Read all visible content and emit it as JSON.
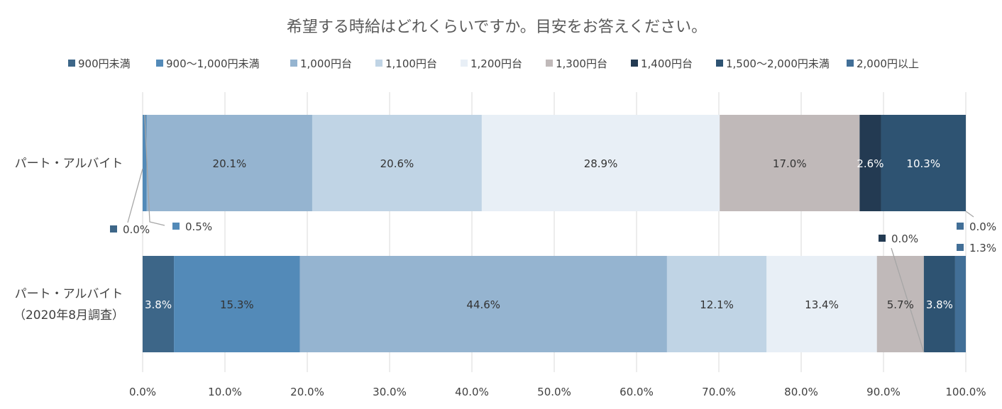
{
  "chart_data": {
    "type": "bar",
    "orientation": "horizontal",
    "stacked": true,
    "title": "希望する時給はどれくらいですか。目安をお答えください。",
    "categories": [
      "パート・アルバイト",
      "パート・アルバイト（2020年8月調査）"
    ],
    "category_lines": [
      [
        "パート・アルバイト"
      ],
      [
        "パート・アルバイト",
        "（2020年8月調査）"
      ]
    ],
    "xlim": [
      0,
      100
    ],
    "x_ticks": [
      0,
      10,
      20,
      30,
      40,
      50,
      60,
      70,
      80,
      90,
      100
    ],
    "x_tick_labels": [
      "0.0%",
      "10.0%",
      "20.0%",
      "30.0%",
      "40.0%",
      "50.0%",
      "60.0%",
      "70.0%",
      "80.0%",
      "90.0%",
      "100.0%"
    ],
    "grid": true,
    "legend_position": "top",
    "series": [
      {
        "name": "900円未満",
        "color": "#3d6688",
        "values": [
          0.0,
          3.8
        ],
        "labels": [
          "0.0%",
          "3.8%"
        ]
      },
      {
        "name": "900〜1,000円未満",
        "color": "#538ab8",
        "values": [
          0.5,
          15.3
        ],
        "labels": [
          "0.5%",
          "15.3%"
        ]
      },
      {
        "name": "1,000円台",
        "color": "#95b4d0",
        "values": [
          20.1,
          44.6
        ],
        "labels": [
          "20.1%",
          "44.6%"
        ]
      },
      {
        "name": "1,100円台",
        "color": "#c0d4e5",
        "values": [
          20.6,
          12.1
        ],
        "labels": [
          "20.6%",
          "12.1%"
        ]
      },
      {
        "name": "1,200円台",
        "color": "#e8eff6",
        "values": [
          28.9,
          13.4
        ],
        "labels": [
          "28.9%",
          "13.4%"
        ]
      },
      {
        "name": "1,300円台",
        "color": "#c0b9b9",
        "values": [
          17.0,
          5.7
        ],
        "labels": [
          "17.0%",
          "5.7%"
        ]
      },
      {
        "name": "1,400円台",
        "color": "#233a52",
        "values": [
          2.6,
          0.0
        ],
        "labels": [
          "2.6%",
          "0.0%"
        ]
      },
      {
        "name": "1,500〜2,000円未満",
        "color": "#2e5372",
        "values": [
          10.3,
          3.8
        ],
        "labels": [
          "10.3%",
          "3.8%"
        ]
      },
      {
        "name": "2,000円以上",
        "color": "#426f97",
        "values": [
          0.0,
          1.3
        ],
        "labels": [
          "0.0%",
          "1.3%"
        ]
      }
    ]
  }
}
